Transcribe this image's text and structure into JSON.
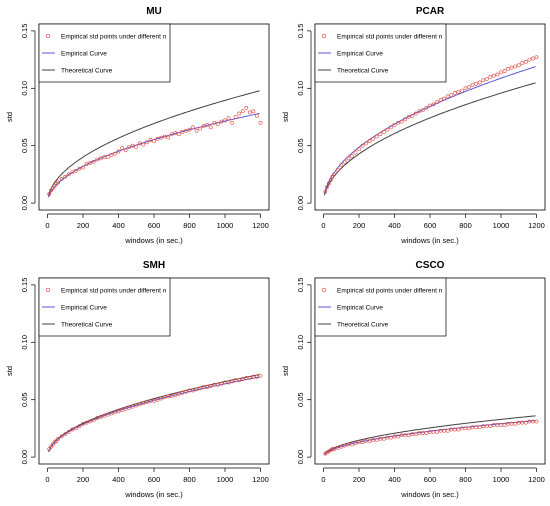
{
  "chart_data": [
    {
      "type": "scatter",
      "title": "MU",
      "xlabel": "windows (in sec.)",
      "ylabel": "std",
      "xlim": [
        0,
        1200
      ],
      "ylim": [
        0,
        0.15
      ],
      "xticks": [
        0,
        200,
        400,
        600,
        800,
        1000,
        1200
      ],
      "yticks": [
        0.0,
        0.05,
        0.1,
        0.15
      ],
      "ytick_labels": [
        "0.00",
        "0.05",
        "0.10",
        "0.15"
      ],
      "legend": [
        "Empirical std points under different n",
        "Empirical Curve",
        "Theoretical Curve"
      ],
      "legend_position": "top-left",
      "curves": {
        "empirical_coef": 0.00226,
        "empirical_exp": 0.5,
        "theoretical_coef": 0.00283,
        "theoretical_exp": 0.5
      },
      "series": [
        {
          "name": "Empirical std points under different n",
          "x": [
            10,
            20,
            30,
            40,
            50,
            60,
            80,
            100,
            120,
            140,
            160,
            180,
            200,
            220,
            240,
            260,
            280,
            300,
            320,
            340,
            360,
            380,
            400,
            420,
            440,
            460,
            480,
            500,
            520,
            540,
            560,
            580,
            600,
            620,
            640,
            660,
            680,
            700,
            720,
            740,
            760,
            780,
            800,
            820,
            840,
            860,
            880,
            900,
            920,
            940,
            960,
            980,
            1000,
            1020,
            1040,
            1060,
            1080,
            1100,
            1120,
            1140,
            1160,
            1180,
            1200
          ],
          "y": [
            0.008,
            0.011,
            0.013,
            0.015,
            0.017,
            0.018,
            0.021,
            0.023,
            0.025,
            0.027,
            0.028,
            0.03,
            0.031,
            0.034,
            0.035,
            0.036,
            0.038,
            0.039,
            0.04,
            0.04,
            0.042,
            0.043,
            0.045,
            0.048,
            0.046,
            0.049,
            0.05,
            0.049,
            0.052,
            0.051,
            0.053,
            0.055,
            0.054,
            0.056,
            0.057,
            0.058,
            0.057,
            0.06,
            0.061,
            0.06,
            0.062,
            0.063,
            0.064,
            0.066,
            0.063,
            0.065,
            0.067,
            0.068,
            0.066,
            0.07,
            0.069,
            0.071,
            0.072,
            0.074,
            0.07,
            0.075,
            0.078,
            0.08,
            0.083,
            0.079,
            0.08,
            0.076,
            0.07
          ]
        }
      ]
    },
    {
      "type": "scatter",
      "title": "PCAR",
      "xlabel": "windows (in sec.)",
      "ylabel": "std",
      "xlim": [
        0,
        1200
      ],
      "ylim": [
        0,
        0.15
      ],
      "xticks": [
        0,
        200,
        400,
        600,
        800,
        1000,
        1200
      ],
      "yticks": [
        0.0,
        0.05,
        0.1,
        0.15
      ],
      "ytick_labels": [
        "0.00",
        "0.05",
        "0.10",
        "0.15"
      ],
      "legend": [
        "Empirical std points under different n",
        "Empirical Curve",
        "Theoretical Curve"
      ],
      "legend_position": "top-left",
      "curves": {
        "empirical_coef": 0.00344,
        "empirical_exp": 0.5,
        "theoretical_coef": 0.00303,
        "theoretical_exp": 0.5
      },
      "series": [
        {
          "name": "Empirical std points under different n",
          "x": [
            10,
            20,
            30,
            40,
            50,
            60,
            80,
            100,
            120,
            140,
            160,
            180,
            200,
            220,
            240,
            260,
            280,
            300,
            320,
            340,
            360,
            380,
            400,
            420,
            440,
            460,
            480,
            500,
            520,
            540,
            560,
            580,
            600,
            620,
            640,
            660,
            680,
            700,
            720,
            740,
            760,
            780,
            800,
            820,
            840,
            860,
            880,
            900,
            920,
            940,
            960,
            980,
            1000,
            1020,
            1040,
            1060,
            1080,
            1100,
            1120,
            1140,
            1160,
            1180,
            1200
          ],
          "y": [
            0.01,
            0.014,
            0.017,
            0.02,
            0.023,
            0.025,
            0.029,
            0.033,
            0.036,
            0.039,
            0.041,
            0.044,
            0.047,
            0.05,
            0.052,
            0.054,
            0.056,
            0.058,
            0.06,
            0.062,
            0.064,
            0.066,
            0.068,
            0.07,
            0.071,
            0.073,
            0.075,
            0.076,
            0.078,
            0.08,
            0.081,
            0.083,
            0.085,
            0.086,
            0.088,
            0.09,
            0.091,
            0.093,
            0.094,
            0.096,
            0.097,
            0.098,
            0.1,
            0.101,
            0.103,
            0.104,
            0.105,
            0.107,
            0.108,
            0.11,
            0.111,
            0.112,
            0.114,
            0.115,
            0.117,
            0.118,
            0.119,
            0.12,
            0.122,
            0.123,
            0.125,
            0.126,
            0.127
          ]
        }
      ]
    },
    {
      "type": "scatter",
      "title": "SMH",
      "xlabel": "windows (in sec.)",
      "ylabel": "std",
      "xlim": [
        0,
        1200
      ],
      "ylim": [
        0,
        0.15
      ],
      "xticks": [
        0,
        200,
        400,
        600,
        800,
        1000,
        1200
      ],
      "yticks": [
        0.0,
        0.05,
        0.1,
        0.15
      ],
      "ytick_labels": [
        "0.00",
        "0.05",
        "0.10",
        "0.15"
      ],
      "legend": [
        "Empirical std points under different n",
        "Empirical Curve",
        "Theoretical Curve"
      ],
      "legend_position": "top-left",
      "curves": {
        "empirical_coef": 0.00202,
        "empirical_exp": 0.5,
        "theoretical_coef": 0.00208,
        "theoretical_exp": 0.5
      },
      "series": [
        {
          "name": "Empirical std points under different n",
          "x": [
            10,
            20,
            30,
            40,
            50,
            60,
            80,
            100,
            120,
            140,
            160,
            180,
            200,
            220,
            240,
            260,
            280,
            300,
            320,
            340,
            360,
            380,
            400,
            420,
            440,
            460,
            480,
            500,
            520,
            540,
            560,
            580,
            600,
            620,
            640,
            660,
            680,
            700,
            720,
            740,
            760,
            780,
            800,
            820,
            840,
            860,
            880,
            900,
            920,
            940,
            960,
            980,
            1000,
            1020,
            1040,
            1060,
            1080,
            1100,
            1120,
            1140,
            1160,
            1180,
            1200
          ],
          "y": [
            0.007,
            0.009,
            0.011,
            0.013,
            0.014,
            0.016,
            0.018,
            0.02,
            0.022,
            0.024,
            0.025,
            0.027,
            0.029,
            0.03,
            0.031,
            0.032,
            0.034,
            0.035,
            0.036,
            0.037,
            0.038,
            0.039,
            0.04,
            0.041,
            0.042,
            0.043,
            0.044,
            0.045,
            0.046,
            0.047,
            0.048,
            0.049,
            0.049,
            0.05,
            0.051,
            0.052,
            0.053,
            0.053,
            0.054,
            0.055,
            0.056,
            0.057,
            0.058,
            0.058,
            0.059,
            0.06,
            0.061,
            0.061,
            0.062,
            0.063,
            0.063,
            0.064,
            0.065,
            0.065,
            0.066,
            0.067,
            0.067,
            0.068,
            0.069,
            0.069,
            0.07,
            0.07,
            0.071
          ]
        }
      ]
    },
    {
      "type": "scatter",
      "title": "CSCO",
      "xlabel": "windows (in sec.)",
      "ylabel": "std",
      "xlim": [
        0,
        1200
      ],
      "ylim": [
        0,
        0.15
      ],
      "xticks": [
        0,
        200,
        400,
        600,
        800,
        1000,
        1200
      ],
      "yticks": [
        0.0,
        0.05,
        0.1,
        0.15
      ],
      "ytick_labels": [
        "0.00",
        "0.05",
        "0.10",
        "0.15"
      ],
      "legend": [
        "Empirical std points under different n",
        "Empirical Curve",
        "Theoretical Curve"
      ],
      "legend_position": "top-left",
      "curves": {
        "empirical_coef": 0.00092,
        "empirical_exp": 0.5,
        "theoretical_coef": 0.00104,
        "theoretical_exp": 0.5
      },
      "series": [
        {
          "name": "Empirical std points under different n",
          "x": [
            10,
            20,
            30,
            40,
            50,
            60,
            80,
            100,
            120,
            140,
            160,
            180,
            200,
            220,
            240,
            260,
            280,
            300,
            320,
            340,
            360,
            380,
            400,
            420,
            440,
            460,
            480,
            500,
            520,
            540,
            560,
            580,
            600,
            620,
            640,
            660,
            680,
            700,
            720,
            740,
            760,
            780,
            800,
            820,
            840,
            860,
            880,
            900,
            920,
            940,
            960,
            980,
            1000,
            1020,
            1040,
            1060,
            1080,
            1100,
            1120,
            1140,
            1160,
            1180,
            1200
          ],
          "y": [
            0.003,
            0.004,
            0.005,
            0.006,
            0.007,
            0.007,
            0.008,
            0.009,
            0.01,
            0.011,
            0.011,
            0.012,
            0.013,
            0.013,
            0.014,
            0.014,
            0.015,
            0.015,
            0.016,
            0.016,
            0.017,
            0.017,
            0.018,
            0.018,
            0.019,
            0.019,
            0.019,
            0.02,
            0.02,
            0.021,
            0.021,
            0.021,
            0.022,
            0.022,
            0.022,
            0.023,
            0.023,
            0.023,
            0.024,
            0.024,
            0.024,
            0.025,
            0.025,
            0.025,
            0.026,
            0.026,
            0.026,
            0.027,
            0.027,
            0.027,
            0.028,
            0.028,
            0.028,
            0.028,
            0.029,
            0.029,
            0.029,
            0.03,
            0.03,
            0.03,
            0.031,
            0.031,
            0.031
          ]
        }
      ]
    }
  ],
  "colors": {
    "points": "#e0433a",
    "empirical_curve": "#5a5ad6",
    "theoretical_curve": "#404040",
    "axis": "#000000"
  }
}
